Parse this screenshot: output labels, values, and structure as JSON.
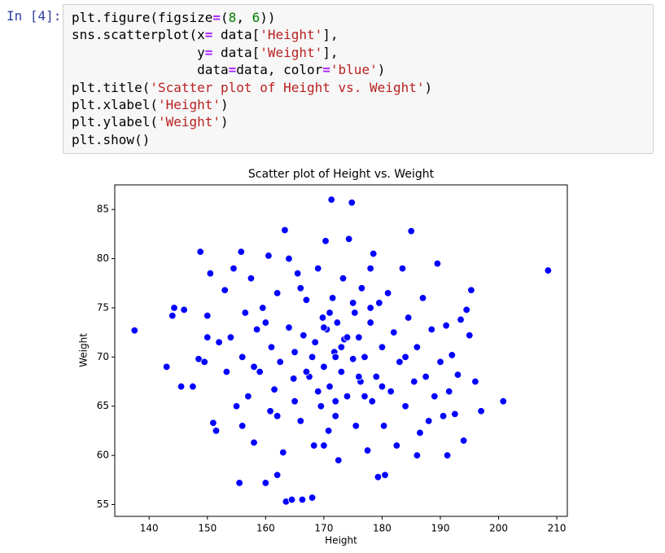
{
  "notebook": {
    "prompt": "In [4]:",
    "code": [
      "plt.figure(figsize=(8, 6))",
      "sns.scatterplot(x= data['Height'],",
      "                y= data['Weight'],",
      "                data=data, color='blue')",
      "plt.title('Scatter plot of Height vs. Weight')",
      "plt.xlabel('Height')",
      "plt.ylabel('Weight')",
      "plt.show()"
    ]
  },
  "chart_data": {
    "type": "scatter",
    "title": "Scatter plot of Height vs. Weight",
    "x_label": "Height",
    "y_label": "Weight",
    "color": "blue",
    "xlim": [
      134.1,
      211.8
    ],
    "ylim": [
      53.8,
      87.5
    ],
    "xticks": [
      140,
      150,
      160,
      170,
      180,
      190,
      200,
      210
    ],
    "yticks": [
      55,
      60,
      65,
      70,
      75,
      80,
      85
    ],
    "x": [
      137.5,
      143,
      144,
      144.3,
      145.5,
      146,
      147.5,
      148.5,
      148.8,
      149.5,
      150,
      150.5,
      151,
      151.5,
      152,
      153,
      153.3,
      154,
      154.5,
      155,
      155.5,
      155.8,
      156,
      156.5,
      157,
      157.5,
      158,
      158.5,
      159,
      159.5,
      160,
      160.5,
      160.8,
      161,
      161.5,
      162,
      162.5,
      163,
      163.3,
      163.5,
      164,
      164.5,
      164.8,
      165,
      165.5,
      166,
      166.3,
      166.5,
      167,
      167.5,
      168,
      168.3,
      168.5,
      169,
      169.5,
      169.8,
      170,
      170.3,
      170.5,
      170.8,
      171,
      171.3,
      171.5,
      171.8,
      172,
      172.3,
      172.5,
      173,
      173.3,
      173.5,
      174,
      174.3,
      174.8,
      175,
      175.3,
      175.5,
      176,
      176.3,
      176.5,
      177,
      177.5,
      178,
      178.3,
      178.5,
      179,
      179.3,
      179.5,
      180,
      180.3,
      180.5,
      181,
      181.5,
      182,
      182.5,
      183,
      183.5,
      184,
      184.5,
      185,
      185.5,
      186,
      186.5,
      187,
      187.5,
      188,
      188.5,
      189,
      189.5,
      190,
      190.5,
      191,
      191.2,
      191.5,
      192,
      192.5,
      193,
      193.5,
      194,
      194.5,
      195,
      195.3,
      196,
      197,
      200.8,
      208.5,
      165,
      168,
      170,
      172,
      174,
      176,
      167,
      169,
      171,
      173,
      175,
      177,
      162,
      166,
      178,
      180,
      184,
      160,
      158,
      156,
      150,
      172,
      170,
      164,
      178,
      186,
      162
    ],
    "y": [
      72.7,
      69,
      74.2,
      75,
      67,
      74.8,
      67,
      69.8,
      80.7,
      69.5,
      74.2,
      78.5,
      63.3,
      62.5,
      71.5,
      76.8,
      68.5,
      72,
      79,
      65,
      57.2,
      80.7,
      70,
      74.5,
      66,
      78,
      61.3,
      72.8,
      68.5,
      75,
      57.2,
      80.3,
      64.5,
      71,
      66.7,
      76.5,
      69.5,
      60.3,
      82.9,
      55.3,
      73,
      55.5,
      67.8,
      70.5,
      78.5,
      63.5,
      55.5,
      72.2,
      75.8,
      68,
      55.7,
      61,
      71.5,
      79,
      65,
      74,
      69,
      81.8,
      72.8,
      62.5,
      67,
      86,
      76,
      70.5,
      64,
      73.5,
      59.5,
      68.5,
      78,
      71.8,
      66,
      82,
      85.7,
      69.8,
      74.5,
      63,
      72,
      67.5,
      77,
      70,
      60.5,
      73.5,
      65.5,
      80.5,
      68,
      57.8,
      75.5,
      71,
      63,
      58,
      76.5,
      66.5,
      72.5,
      61,
      69.5,
      79,
      65,
      74,
      82.8,
      67.5,
      71,
      62.3,
      76,
      68,
      63.5,
      72.8,
      66,
      79.5,
      69.5,
      64,
      73.2,
      60,
      66.5,
      70.2,
      64.2,
      68.2,
      73.8,
      61.5,
      74.8,
      72.2,
      76.8,
      67.5,
      64.5,
      65.5,
      78.8,
      65.5,
      70,
      73,
      70,
      72,
      68,
      68.5,
      66.5,
      74.5,
      71,
      75.5,
      66,
      64,
      77,
      75,
      67,
      70,
      73.5,
      69,
      63,
      72,
      65.5,
      61,
      80,
      79,
      60,
      58
    ]
  }
}
